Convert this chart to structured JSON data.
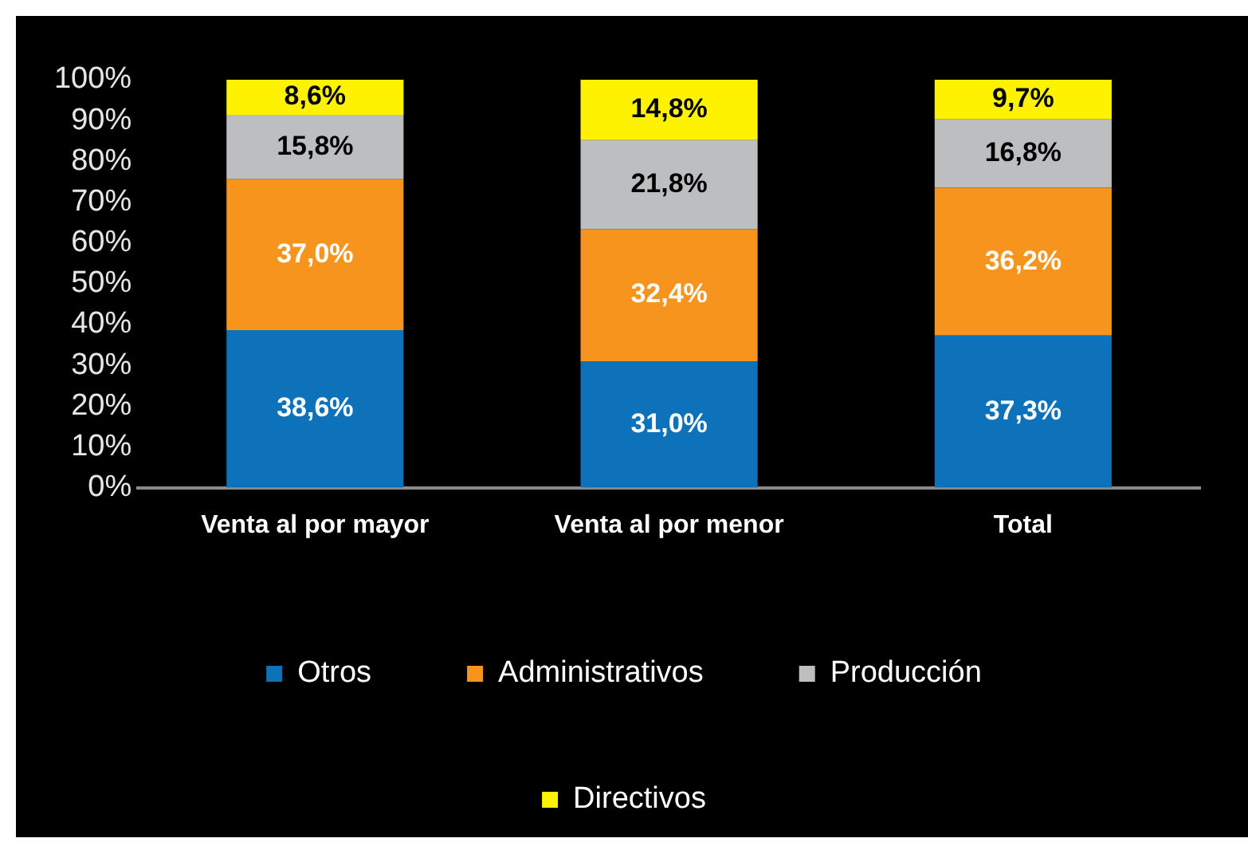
{
  "chart_data": {
    "type": "bar",
    "stacked": true,
    "categories": [
      "Venta al por mayor",
      "Venta al por menor",
      "Total"
    ],
    "series": [
      {
        "name": "Otros",
        "color": "#0e72ba",
        "values": [
          38.6,
          31.0,
          37.3
        ],
        "value_labels": [
          "38,6%",
          "31,0%",
          "37,3%"
        ]
      },
      {
        "name": "Administrativos",
        "color": "#f7941d",
        "values": [
          37.0,
          32.4,
          36.2
        ],
        "value_labels": [
          "37,0%",
          "32,4%",
          "36,2%"
        ]
      },
      {
        "name": "Producción",
        "color": "#bdbec0",
        "values": [
          15.8,
          21.8,
          16.8
        ],
        "value_labels": [
          "15,8%",
          "21,8%",
          "16,8%"
        ]
      },
      {
        "name": "Directivos",
        "color": "#fff200",
        "values": [
          8.6,
          14.8,
          9.7
        ],
        "value_labels": [
          "8,6%",
          "14,8%",
          "9,7%"
        ]
      }
    ],
    "ylim": [
      0,
      100
    ],
    "yticks": [
      {
        "value": 0,
        "label": "0%"
      },
      {
        "value": 10,
        "label": "10%"
      },
      {
        "value": 20,
        "label": "20%"
      },
      {
        "value": 30,
        "label": "30%"
      },
      {
        "value": 40,
        "label": "40%"
      },
      {
        "value": 50,
        "label": "50%"
      },
      {
        "value": 60,
        "label": "60%"
      },
      {
        "value": 70,
        "label": "70%"
      },
      {
        "value": 80,
        "label": "80%"
      },
      {
        "value": 90,
        "label": "90%"
      },
      {
        "value": 100,
        "label": "100%"
      }
    ],
    "grid": false,
    "legend": "bottom"
  }
}
